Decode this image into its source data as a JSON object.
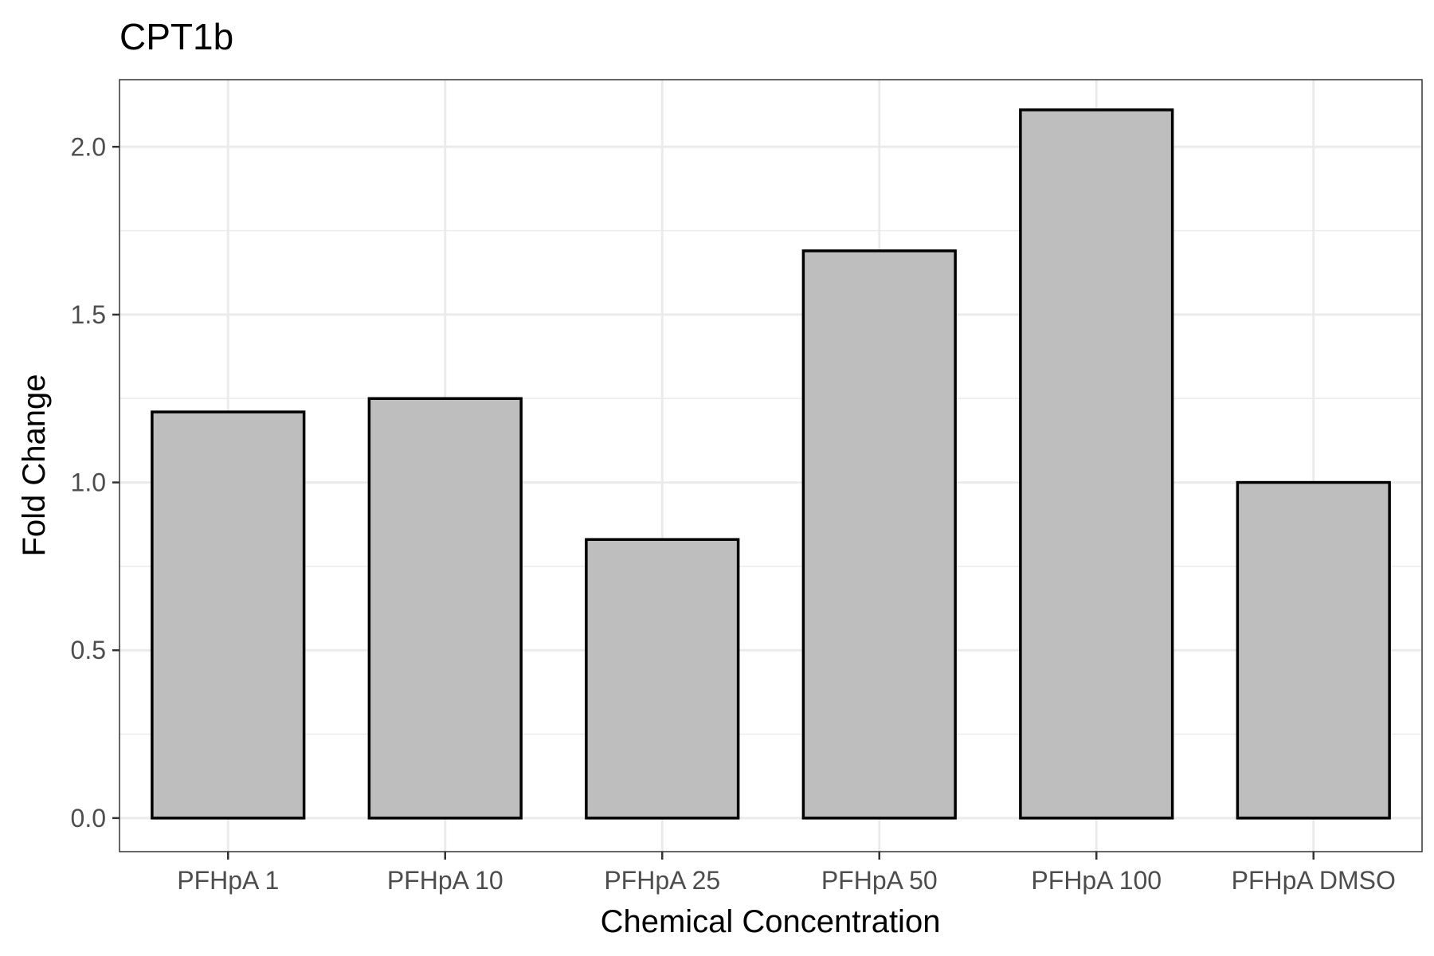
{
  "chart_data": {
    "type": "bar",
    "title": "CPT1b",
    "xlabel": "Chemical Concentration",
    "ylabel": "Fold Change",
    "categories": [
      "PFHpA 1",
      "PFHpA 10",
      "PFHpA 25",
      "PFHpA 50",
      "PFHpA 100",
      "PFHpA DMSO"
    ],
    "values": [
      1.21,
      1.25,
      0.83,
      1.69,
      2.11,
      1.0
    ],
    "ylim": [
      -0.1,
      2.2
    ],
    "yticks": [
      0.0,
      0.5,
      1.0,
      1.5,
      2.0
    ],
    "ytick_labels": [
      "0.0",
      "0.5",
      "1.0",
      "1.5",
      "2.0"
    ],
    "grid": true,
    "legend": "none",
    "colors": {
      "bar_fill": "#bebebe",
      "bar_stroke": "#000000",
      "grid": "#ebebeb",
      "panel_border": "#333333",
      "tick_text": "#4d4d4d"
    }
  }
}
